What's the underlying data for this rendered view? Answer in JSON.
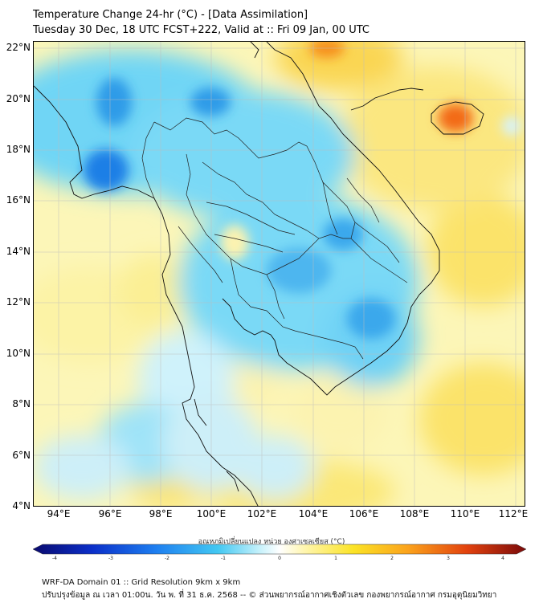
{
  "header": {
    "title": "Temperature Change 24-hr (°C) - [Data Assimilation]",
    "subtitle": "Tuesday 30 Dec, 18 UTC FCST+222, Valid at :: Fri 09 Jan, 00 UTC"
  },
  "map": {
    "lat_labels": [
      "22°N",
      "20°N",
      "18°N",
      "16°N",
      "14°N",
      "12°N",
      "10°N",
      "8°N",
      "6°N",
      "4°N"
    ],
    "lon_labels": [
      "94°E",
      "96°E",
      "98°E",
      "100°E",
      "102°E",
      "104°E",
      "106°E",
      "108°E",
      "110°E",
      "112°E"
    ]
  },
  "colorbar": {
    "label": "อุณหภูมิเปลี่ยนแปลง หน่วย องศาเซลเซียส (°C)",
    "ticks": [
      "-4",
      "-3",
      "-2",
      "-1",
      "0",
      "1",
      "2",
      "3",
      "4"
    ],
    "min": -4,
    "max": 4,
    "colors": [
      "#0a0a6e",
      "#0b2fc9",
      "#1e7ff0",
      "#43c8f2",
      "#c6f1fb",
      "#ffffff",
      "#fff6b0",
      "#fbe326",
      "#fba31c",
      "#e2420e",
      "#7a0a0a"
    ]
  },
  "footer": {
    "line1": "WRF-DA Domain 01 :: Grid Resolution 9km x 9km",
    "line2": "ปรับปรุงข้อมูล ณ เวลา 01:00น. วัน พ. ที่ 31 ธ.ค. 2568 -- © ส่วนพยากรณ์อากาศเชิงตัวเลข กองพยากรณ์อากาศ กรมอุตุนิยมวิทยา"
  }
}
